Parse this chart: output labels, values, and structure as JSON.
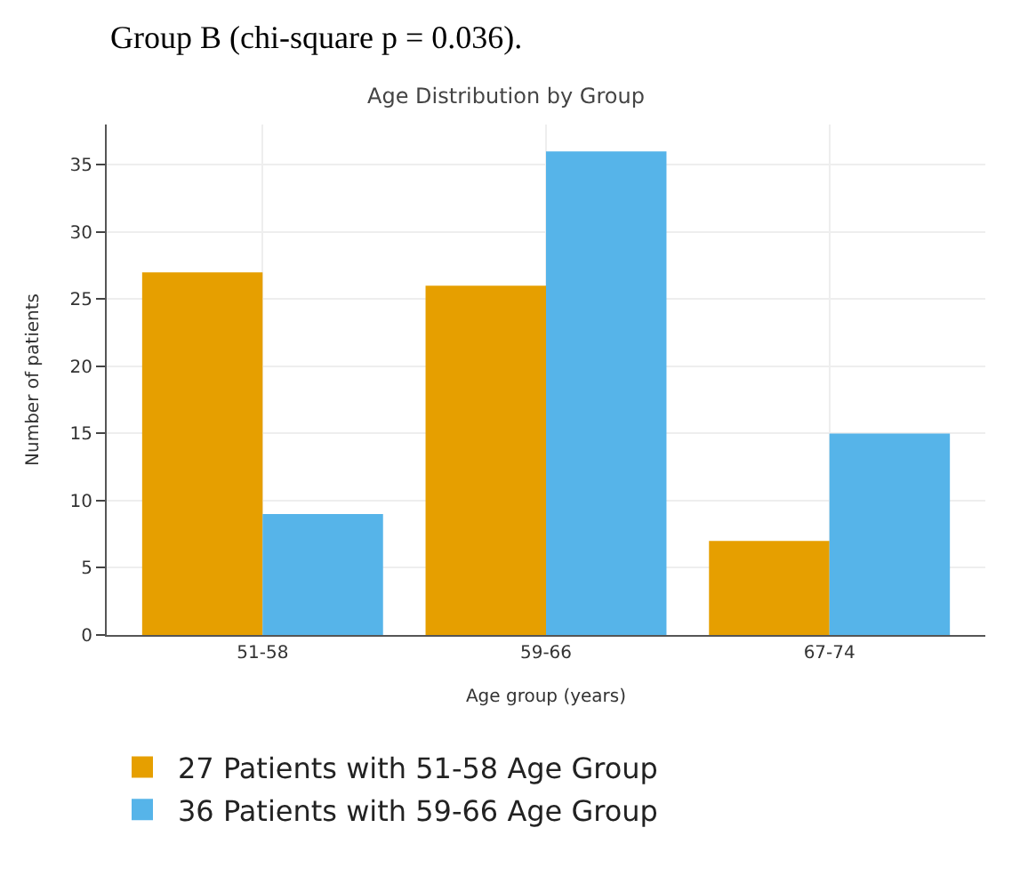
{
  "chart_data": {
    "type": "bar",
    "title": "Age Distribution by Group",
    "xlabel": "Age group (years)",
    "ylabel": "Number of patients",
    "annotations": [
      "Group B (chi-square p = 0.036)."
    ],
    "categories": [
      "51-58",
      "59-66",
      "67-74"
    ],
    "series": [
      {
        "name": "27 Patients with 51-58 Age Group",
        "color": "#e69f00",
        "values": [
          27,
          26,
          7
        ]
      },
      {
        "name": "36 Patients with 59-66 Age Group",
        "color": "#56b4e9",
        "values": [
          9,
          36,
          15
        ]
      }
    ],
    "ylim": [
      0,
      38
    ],
    "yticks": [
      0,
      5,
      10,
      15,
      20,
      25,
      30,
      35
    ],
    "grid": true,
    "legend": "bottom"
  }
}
